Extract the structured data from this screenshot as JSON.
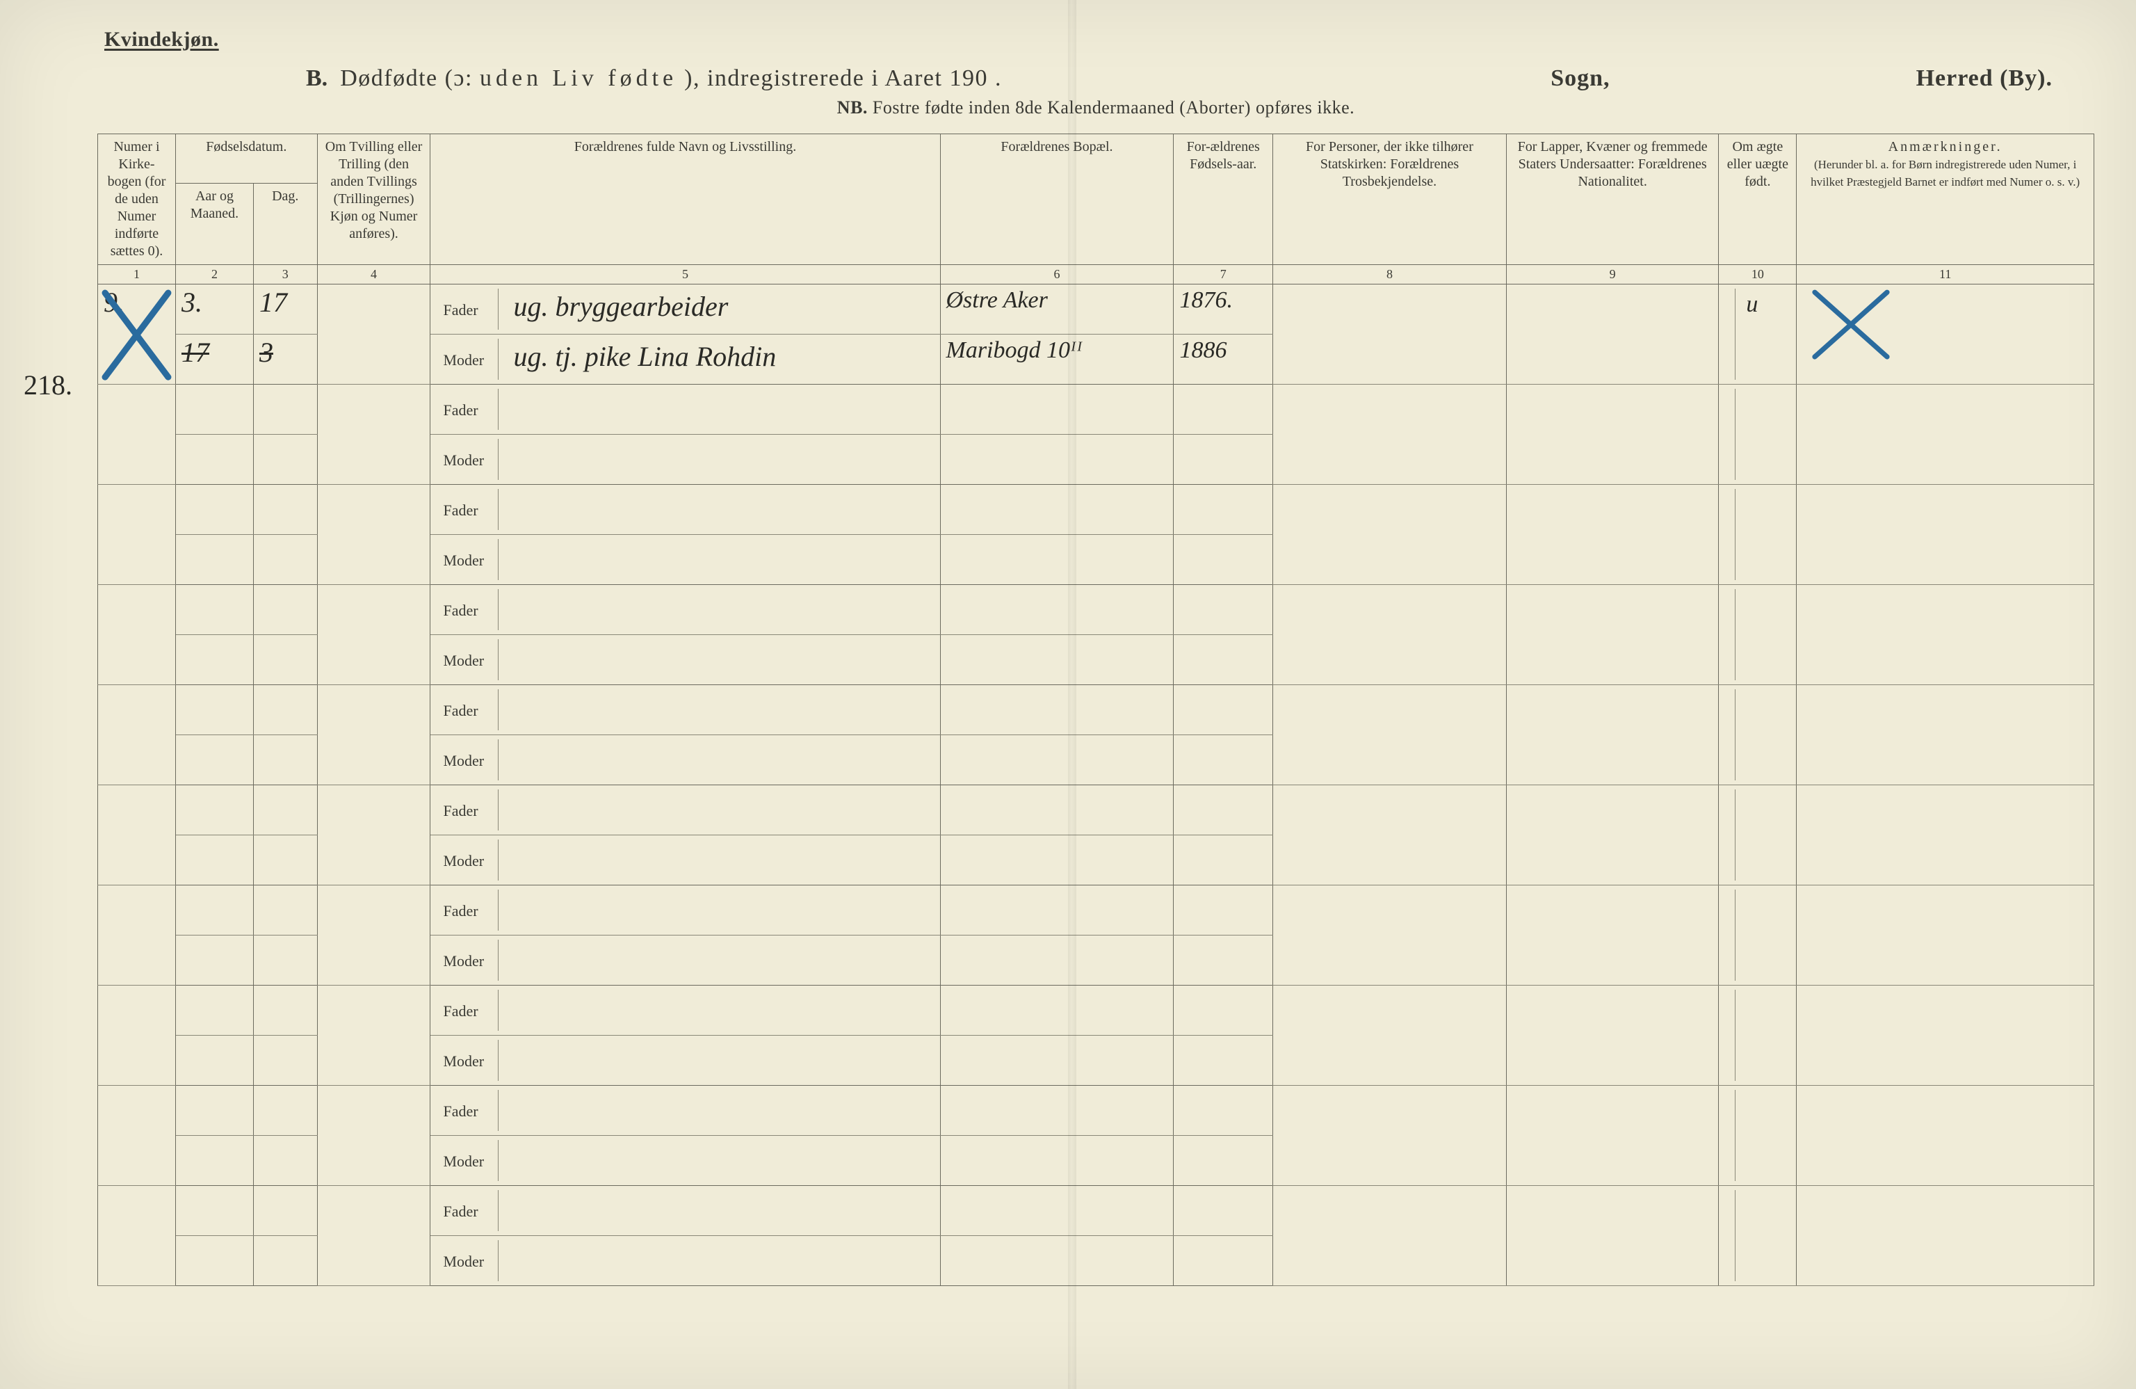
{
  "header": {
    "kvindekjon": "Kvindekjøn.",
    "b": "B.",
    "title_pre": "Dødfødte (ɔ:",
    "title_uden": "uden Liv fødte",
    "title_post": "), indregistrerede i Aaret 190",
    "title_dot": ".",
    "sogn": "Sogn,",
    "herred": "Herred (By).",
    "nb_bold": "NB.",
    "nb_rest": "Fostre fødte inden 8de Kalendermaaned (Aborter) opføres ikke."
  },
  "columns": {
    "c1": "Numer i Kirke-bogen (for de uden Numer indførte sættes 0).",
    "c2_group": "Fødselsdatum.",
    "c2": "Aar og Maaned.",
    "c3": "Dag.",
    "c4": "Om Tvilling eller Trilling (den anden Tvillings (Trillingernes) Kjøn og Numer anføres).",
    "c5": "Forældrenes fulde Navn og Livsstilling.",
    "c6": "Forældrenes Bopæl.",
    "c7": "For-ældrenes Fødsels-aar.",
    "c8": "For Personer, der ikke tilhører Statskirken: Forældrenes Trosbekjendelse.",
    "c9": "For Lapper, Kvæner og fremmede Staters Undersaatter: Forældrenes Nationalitet.",
    "c10": "Om ægte eller uægte født.",
    "c11_title": "Anmærkninger.",
    "c11_sub": "(Herunder bl. a. for Børn indregistrerede uden Numer, i hvilket Præstegjeld Barnet er indført med Numer o. s. v.)"
  },
  "colnums": [
    "1",
    "2",
    "3",
    "4",
    "5",
    "6",
    "7",
    "8",
    "9",
    "10",
    "11"
  ],
  "labels": {
    "fader": "Fader",
    "moder": "Moder"
  },
  "margin_note": "218.",
  "entry": {
    "col1_top": "9.",
    "col2_top": "3.",
    "col3_top": "17",
    "col2_bot_strike": "17",
    "col3_bot_strike": "3",
    "fader_text": "ug. bryggearbeider",
    "moder_text": "ug. tj. pike Lina Rohdin",
    "bopal_fader": "Østre Aker",
    "bopal_moder": "Maribogd 10ᴵᴵ",
    "aar_fader": "1876.",
    "aar_moder": "1886",
    "col10": "u"
  },
  "style": {
    "paper": "#f0ecd8",
    "ink": "#3a3a34",
    "rule": "#6b6a5e",
    "rule_light": "#8a8878",
    "handwriting": "#2a2a26",
    "blue_pen": "#2a6b9e",
    "row_pairs": 10
  }
}
